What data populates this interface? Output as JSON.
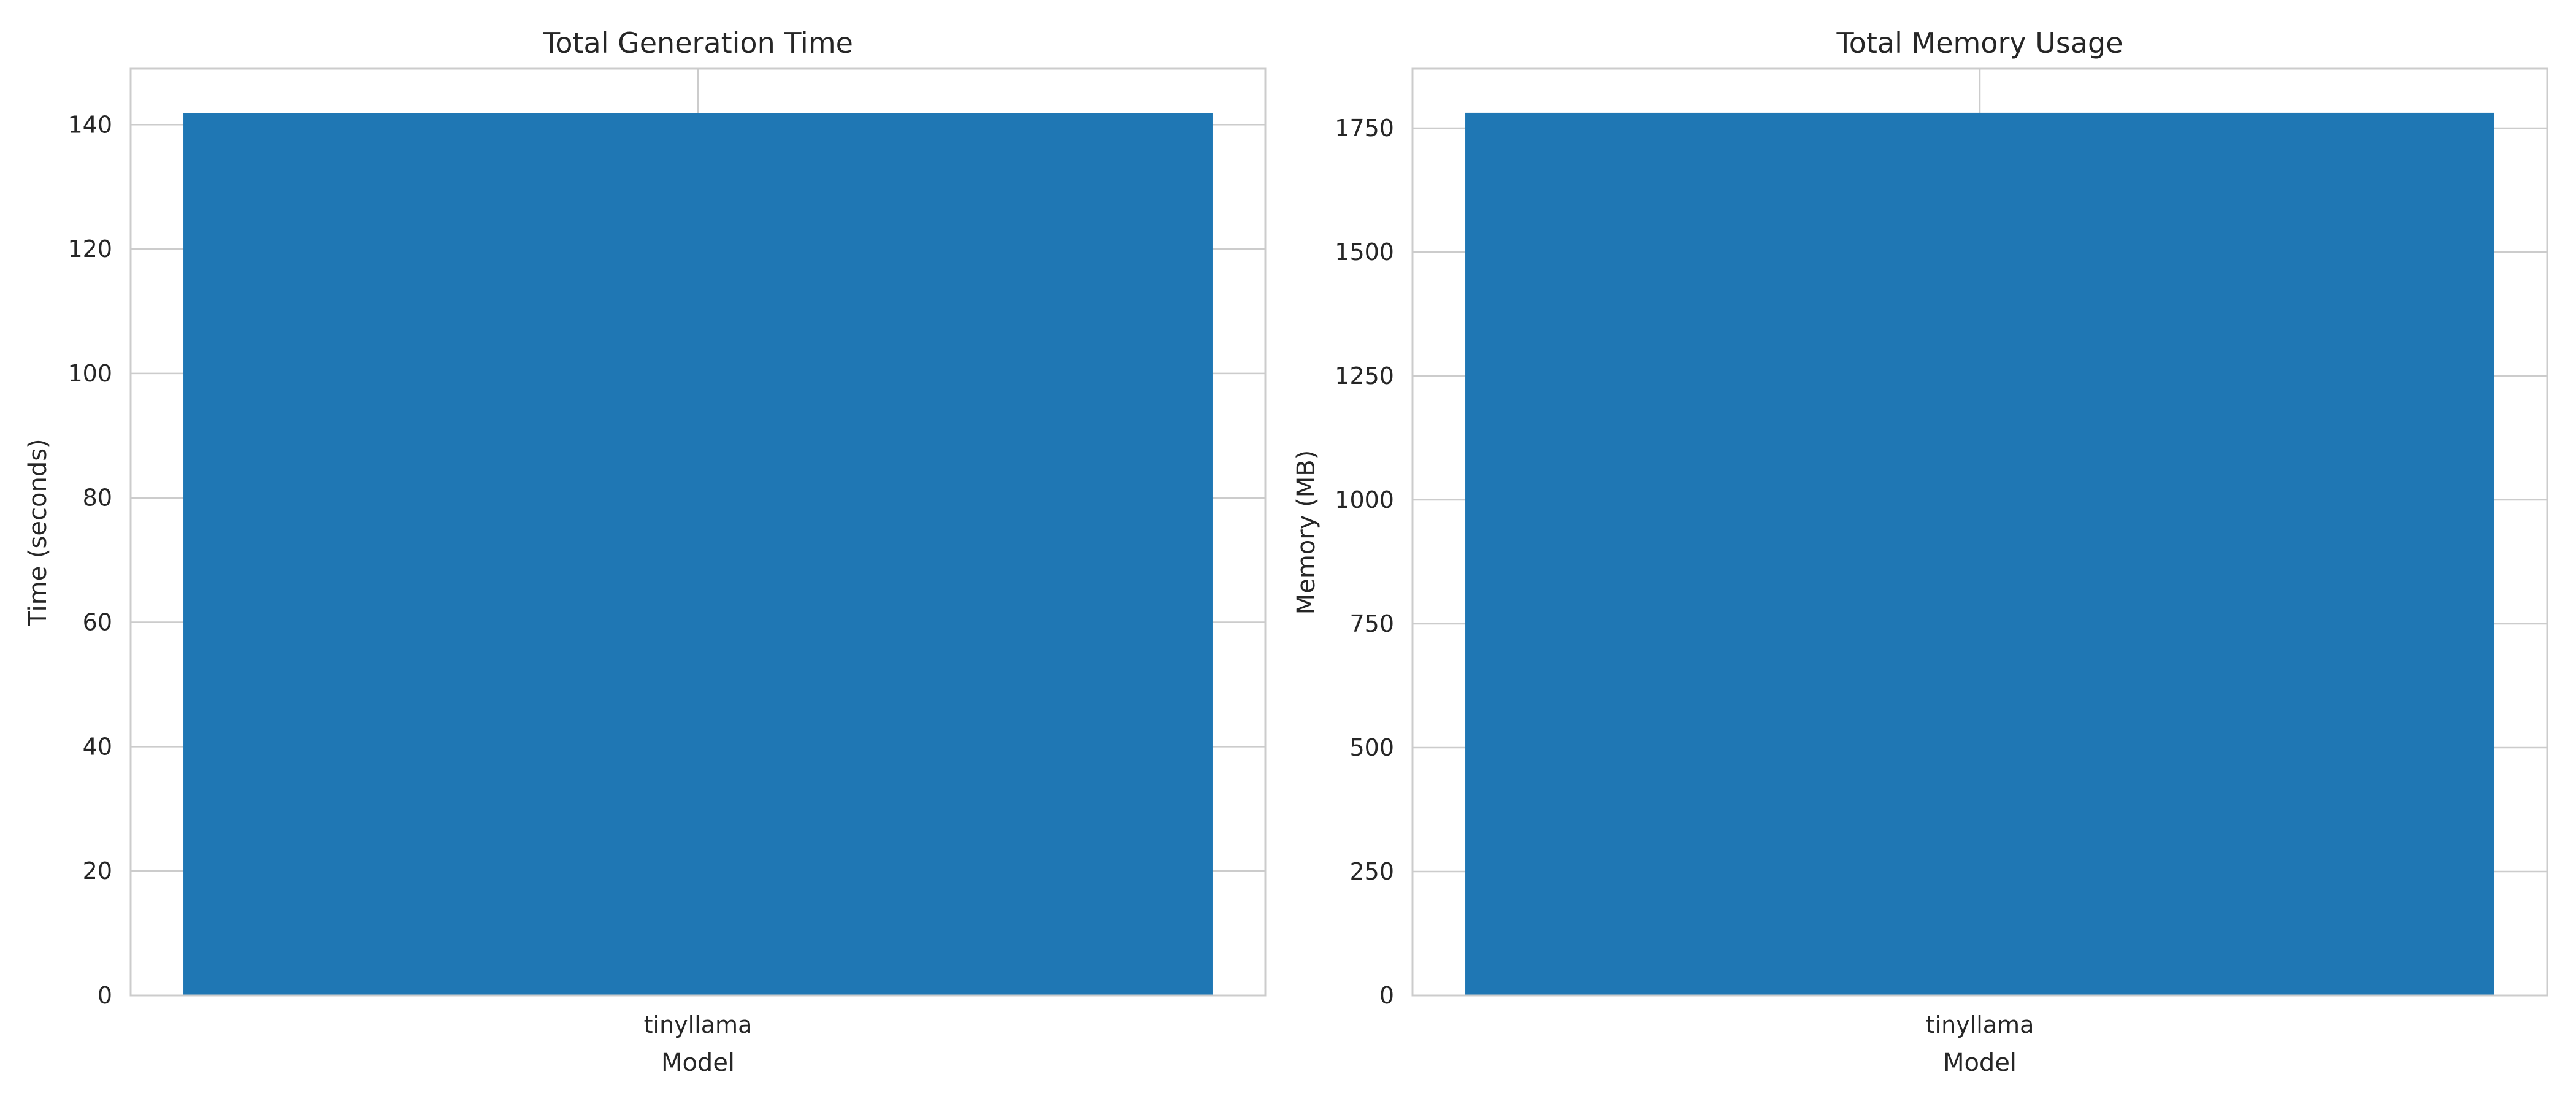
{
  "chart_data": [
    {
      "type": "bar",
      "title": "Total Generation Time",
      "xlabel": "Model",
      "ylabel": "Time (seconds)",
      "categories": [
        "tinyllama"
      ],
      "values": [
        141.9
      ],
      "ylim": [
        0,
        149
      ],
      "yticks": [
        0,
        20,
        40,
        60,
        80,
        100,
        120,
        140
      ],
      "grid": true,
      "bar_color": "#1f77b4"
    },
    {
      "type": "bar",
      "title": "Total Memory Usage",
      "xlabel": "Model",
      "ylabel": "Memory (MB)",
      "categories": [
        "tinyllama"
      ],
      "values": [
        1781
      ],
      "ylim": [
        0,
        1870
      ],
      "yticks": [
        0,
        250,
        500,
        750,
        1000,
        1250,
        1500,
        1750
      ],
      "grid": true,
      "bar_color": "#1f77b4"
    }
  ]
}
